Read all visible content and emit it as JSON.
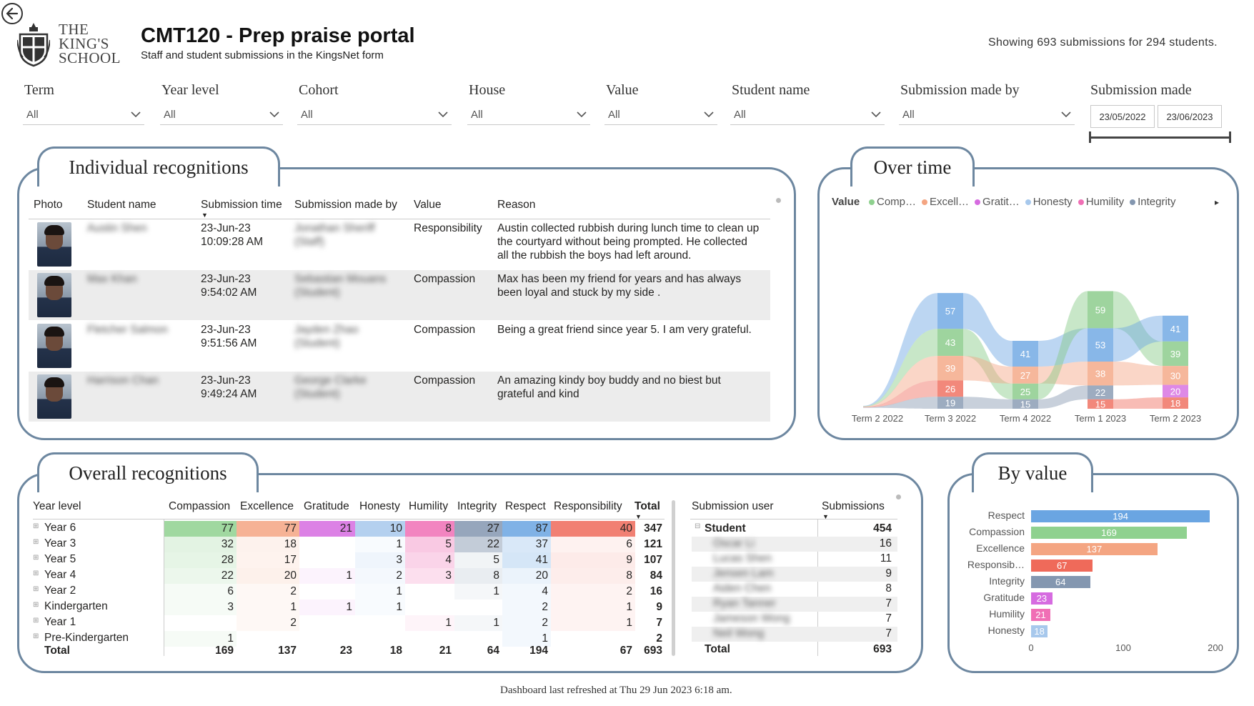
{
  "header": {
    "logo_text": [
      "THE",
      "KING'S",
      "SCHOOL"
    ],
    "title": "CMT120 - Prep praise portal",
    "subtitle": "Staff and student submissions in the KingsNet form",
    "showing": "Showing 693 submissions for 294 students."
  },
  "slicers": [
    {
      "label": "Term",
      "value": "All"
    },
    {
      "label": "Year level",
      "value": "All"
    },
    {
      "label": "Cohort",
      "value": "All"
    },
    {
      "label": "House",
      "value": "All"
    },
    {
      "label": "Value",
      "value": "All"
    },
    {
      "label": "Student name",
      "value": "All"
    },
    {
      "label": "Submission made by",
      "value": "All"
    }
  ],
  "date_slicer": {
    "label": "Submission made",
    "start": "23/05/2022",
    "end": "23/06/2023"
  },
  "individual": {
    "tab": "Individual recognitions",
    "columns": [
      "Photo",
      "Student name",
      "Submission time",
      "Submission made by",
      "Value",
      "Reason"
    ],
    "rows": [
      {
        "student": "Austin Shen",
        "date": "23-Jun-23",
        "time": "10:09:28 AM",
        "by": [
          "Jonathan Sheriff",
          "(Staff)"
        ],
        "value": "Responsibility",
        "reason": [
          "Austin collected rubbish during lunch time to clean up",
          "the courtyard without being prompted. He collected",
          "all the rubbish the boys had left around."
        ]
      },
      {
        "student": "Max Khan",
        "date": "23-Jun-23",
        "time": "9:54:02 AM",
        "by": [
          "Sebastian Mouans",
          "(Student)"
        ],
        "value": "Compassion",
        "reason": [
          "Max has been my friend for years and has always",
          "been loyal and stuck by my side ."
        ]
      },
      {
        "student": "Fletcher Salmon",
        "date": "23-Jun-23",
        "time": "9:51:56 AM",
        "by": [
          "Jayden Zhao",
          "(Student)"
        ],
        "value": "Compassion",
        "reason": [
          "Being a great friend since year 5. I am very grateful."
        ]
      },
      {
        "student": "Harrison Chan",
        "date": "23-Jun-23",
        "time": "9:49:24 AM",
        "by": [
          "George Clarke",
          "(Student)"
        ],
        "value": "Compassion",
        "reason": [
          "An amazing kindy boy buddy and no biest but",
          "grateful and kind"
        ]
      }
    ]
  },
  "over_time": {
    "tab": "Over time",
    "legend_title": "Value",
    "legend": [
      {
        "name": "Comp…",
        "color": "#8fd18f"
      },
      {
        "name": "Excell…",
        "color": "#f4a582"
      },
      {
        "name": "Gratit…",
        "color": "#d66be0"
      },
      {
        "name": "Honesty",
        "color": "#a7c8ec"
      },
      {
        "name": "Humility",
        "color": "#f06fb5"
      },
      {
        "name": "Integrity",
        "color": "#8497b0"
      }
    ],
    "legend_more_arrow": "▸"
  },
  "chart_data": [
    {
      "type": "area",
      "title": "Over time",
      "subtype": "ribbon",
      "categories": [
        "Term 2 2022",
        "Term 3 2022",
        "Term 4 2022",
        "Term 1 2023",
        "Term 2 2023"
      ],
      "labels": [
        {
          "term": "Term 3 2022",
          "value": 57,
          "color": "#6aa5e2"
        },
        {
          "term": "Term 3 2022",
          "value": 43,
          "color": "#86c986"
        },
        {
          "term": "Term 3 2022",
          "value": 39,
          "color": "#f4a582"
        },
        {
          "term": "Term 3 2022",
          "value": 26,
          "color": "#ef6a5a"
        },
        {
          "term": "Term 3 2022",
          "value": 19,
          "color": "#8497b0"
        },
        {
          "term": "Term 4 2022",
          "value": 41,
          "color": "#6aa5e2"
        },
        {
          "term": "Term 4 2022",
          "value": 27,
          "color": "#f4a582"
        },
        {
          "term": "Term 4 2022",
          "value": 25,
          "color": "#86c986"
        },
        {
          "term": "Term 4 2022",
          "value": 15,
          "color": "#8497b0"
        },
        {
          "term": "Term 1 2023",
          "value": 59,
          "color": "#86c986"
        },
        {
          "term": "Term 1 2023",
          "value": 53,
          "color": "#6aa5e2"
        },
        {
          "term": "Term 1 2023",
          "value": 38,
          "color": "#f4a582"
        },
        {
          "term": "Term 1 2023",
          "value": 22,
          "color": "#8497b0"
        },
        {
          "term": "Term 1 2023",
          "value": 15,
          "color": "#ef6a5a"
        },
        {
          "term": "Term 2 2023",
          "value": 41,
          "color": "#6aa5e2"
        },
        {
          "term": "Term 2 2023",
          "value": 39,
          "color": "#86c986"
        },
        {
          "term": "Term 2 2023",
          "value": 30,
          "color": "#f4a582"
        },
        {
          "term": "Term 2 2023",
          "value": 20,
          "color": "#d66be0"
        },
        {
          "term": "Term 2 2023",
          "value": 18,
          "color": "#ef6a5a"
        }
      ]
    },
    {
      "type": "bar",
      "title": "By value",
      "orientation": "horizontal",
      "categories": [
        "Respect",
        "Compassion",
        "Excellence",
        "Responsib…",
        "Integrity",
        "Gratitude",
        "Humility",
        "Honesty"
      ],
      "values": [
        194,
        169,
        137,
        67,
        64,
        23,
        21,
        18
      ],
      "colors": [
        "#6aa5e2",
        "#8fd18f",
        "#f4a582",
        "#ef6a5a",
        "#8497b0",
        "#d66be0",
        "#f06fb5",
        "#a7c8ec"
      ],
      "xlim": [
        0,
        200
      ],
      "xticks": [
        "0",
        "100",
        "200"
      ]
    }
  ],
  "overall": {
    "tab": "Overall recognitions",
    "columns": [
      "Year level",
      "Compassion",
      "Excellence",
      "Gratitude",
      "Honesty",
      "Humility",
      "Integrity",
      "Respect",
      "Responsibility",
      "Total"
    ],
    "rows": [
      {
        "label": "Year 6",
        "cells": [
          "77",
          "77",
          "21",
          "10",
          "8",
          "27",
          "87",
          "40"
        ],
        "total": "347"
      },
      {
        "label": "Year 3",
        "cells": [
          "32",
          "18",
          "",
          "1",
          "5",
          "22",
          "37",
          "6"
        ],
        "total": "121"
      },
      {
        "label": "Year 5",
        "cells": [
          "28",
          "17",
          "",
          "3",
          "4",
          "5",
          "41",
          "9"
        ],
        "total": "107"
      },
      {
        "label": "Year 4",
        "cells": [
          "22",
          "20",
          "1",
          "2",
          "3",
          "8",
          "20",
          "8"
        ],
        "total": "84"
      },
      {
        "label": "Year 2",
        "cells": [
          "6",
          "2",
          "",
          "1",
          "",
          "1",
          "4",
          "2"
        ],
        "total": "16"
      },
      {
        "label": "Kindergarten",
        "cells": [
          "3",
          "1",
          "1",
          "1",
          "",
          "",
          "2",
          "1"
        ],
        "total": "9"
      },
      {
        "label": "Year 1",
        "cells": [
          "",
          "2",
          "",
          "",
          "1",
          "1",
          "2",
          "1"
        ],
        "total": "7"
      },
      {
        "label": "Pre-Kindergarten",
        "cells": [
          "1",
          "",
          "",
          "",
          "",
          "",
          "1",
          ""
        ],
        "total": "2"
      }
    ],
    "total_label": "Total",
    "totals": [
      "169",
      "137",
      "23",
      "18",
      "21",
      "64",
      "194",
      "67"
    ],
    "grand_total": "693"
  },
  "submission_users": {
    "columns": [
      "Submission user",
      "Submissions"
    ],
    "group_label": "Student",
    "group_value": "454",
    "rows": [
      {
        "name": "Oscar Li",
        "value": "16"
      },
      {
        "name": "Lucas Shen",
        "value": "11"
      },
      {
        "name": "Jensen Lam",
        "value": "9"
      },
      {
        "name": "Aiden Chen",
        "value": "8"
      },
      {
        "name": "Ryan Tanner",
        "value": "7"
      },
      {
        "name": "Jameson Wong",
        "value": "7"
      },
      {
        "name": "Neil Wong",
        "value": "7"
      }
    ],
    "total_label": "Total",
    "total_value": "693"
  },
  "by_value": {
    "tab": "By value"
  },
  "footer": "Dashboard last refreshed at Thu 29 Jun 2023 6:18 am."
}
